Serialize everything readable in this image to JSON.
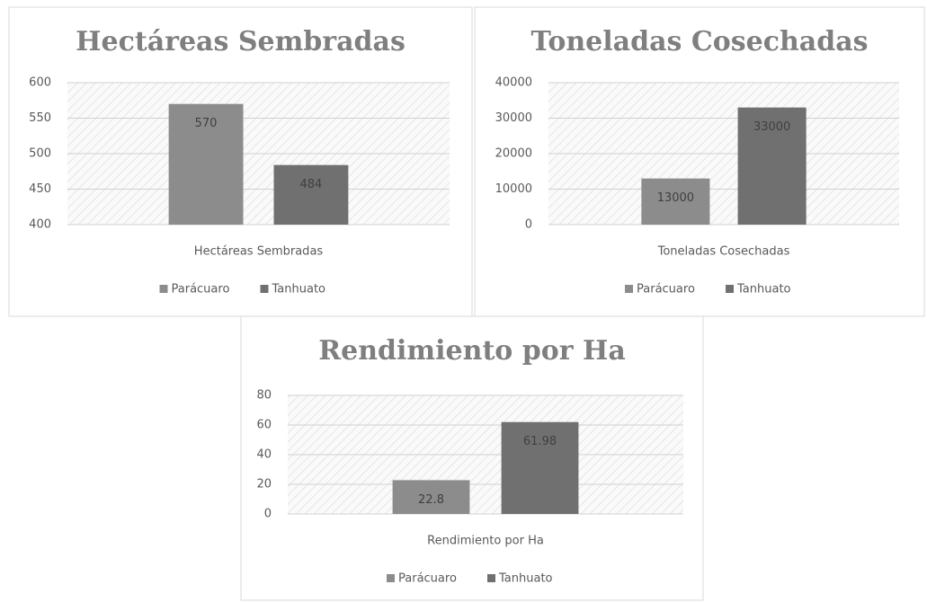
{
  "chart_data": [
    {
      "type": "bar",
      "title": "Hectáreas Sembradas",
      "categories": [
        "Hectáreas Sembradas"
      ],
      "series": [
        {
          "name": "Parácuaro",
          "color": "#8c8c8c",
          "values": [
            570
          ]
        },
        {
          "name": "Tanhuato",
          "color": "#707070",
          "values": [
            484
          ]
        }
      ],
      "ylim": [
        400,
        600
      ],
      "yticks": [
        400,
        450,
        500,
        550,
        600
      ],
      "grid": true,
      "legend": "bottom"
    },
    {
      "type": "bar",
      "title": "Toneladas Cosechadas",
      "categories": [
        "Toneladas Cosechadas"
      ],
      "series": [
        {
          "name": "Parácuaro",
          "color": "#8c8c8c",
          "values": [
            13000
          ]
        },
        {
          "name": "Tanhuato",
          "color": "#707070",
          "values": [
            33000
          ]
        }
      ],
      "ylim": [
        0,
        40000
      ],
      "yticks": [
        0,
        10000,
        20000,
        30000,
        40000
      ],
      "grid": true,
      "legend": "bottom"
    },
    {
      "type": "bar",
      "title": "Rendimiento por Ha",
      "categories": [
        "Rendimiento por Ha"
      ],
      "series": [
        {
          "name": "Parácuaro",
          "color": "#8c8c8c",
          "values": [
            22.8
          ]
        },
        {
          "name": "Tanhuato",
          "color": "#707070",
          "values": [
            61.98
          ]
        }
      ],
      "ylim": [
        0,
        80
      ],
      "yticks": [
        0,
        20,
        40,
        60,
        80
      ],
      "grid": true,
      "legend": "bottom"
    }
  ]
}
